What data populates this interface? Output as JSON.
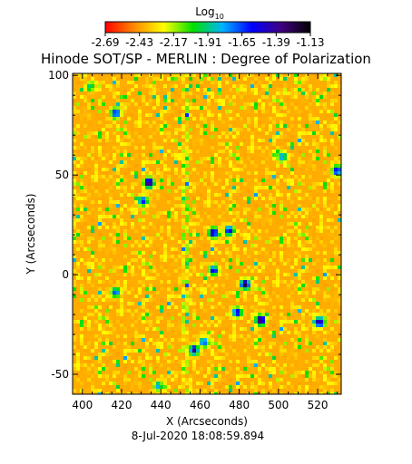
{
  "chart_data": {
    "type": "heatmap",
    "title": "Hinode SOT/SP - MERLIN : Degree of Polarization",
    "xlabel": "X (Arcseconds)",
    "ylabel": "Y (Arcseconds)",
    "xlim": [
      395,
      532
    ],
    "ylim": [
      -60,
      101
    ],
    "xticks": [
      400,
      420,
      440,
      460,
      480,
      500,
      520
    ],
    "yticks": [
      -50,
      0,
      50,
      100
    ],
    "colorbar": {
      "label_base": "Log",
      "label_sub": "10",
      "min": -2.69,
      "max": -1.13,
      "tick_labels": [
        "-2.69",
        "-2.43",
        "-2.17",
        "-1.91",
        "-1.65",
        "-1.39",
        "-1.13"
      ],
      "colors": [
        "#ff0000",
        "#ff8c00",
        "#ffff00",
        "#00e000",
        "#00b4ff",
        "#0000ff",
        "#400080",
        "#000000"
      ]
    },
    "background_level": -2.45,
    "high_polarization_regions": [
      {
        "x": 403,
        "y": 95,
        "level": -1.9
      },
      {
        "x": 416,
        "y": 82,
        "level": -1.5
      },
      {
        "x": 433,
        "y": 47,
        "level": -1.2
      },
      {
        "x": 430,
        "y": 38,
        "level": -1.6
      },
      {
        "x": 466,
        "y": 22,
        "level": -1.3
      },
      {
        "x": 474,
        "y": 23,
        "level": -1.4
      },
      {
        "x": 466,
        "y": 3,
        "level": -1.5
      },
      {
        "x": 482,
        "y": -4,
        "level": -1.25
      },
      {
        "x": 490,
        "y": -22,
        "level": -1.2
      },
      {
        "x": 478,
        "y": -18,
        "level": -1.5
      },
      {
        "x": 520,
        "y": -23,
        "level": -1.3
      },
      {
        "x": 456,
        "y": -37,
        "level": -1.35
      },
      {
        "x": 461,
        "y": -33,
        "level": -1.6
      },
      {
        "x": 501,
        "y": 60,
        "level": -1.7
      },
      {
        "x": 529,
        "y": 53,
        "level": -1.5
      },
      {
        "x": 416,
        "y": -8,
        "level": -1.6
      },
      {
        "x": 438,
        "y": -55,
        "level": -1.8
      }
    ],
    "timestamp": "8-Jul-2020 18:08:59.894"
  }
}
